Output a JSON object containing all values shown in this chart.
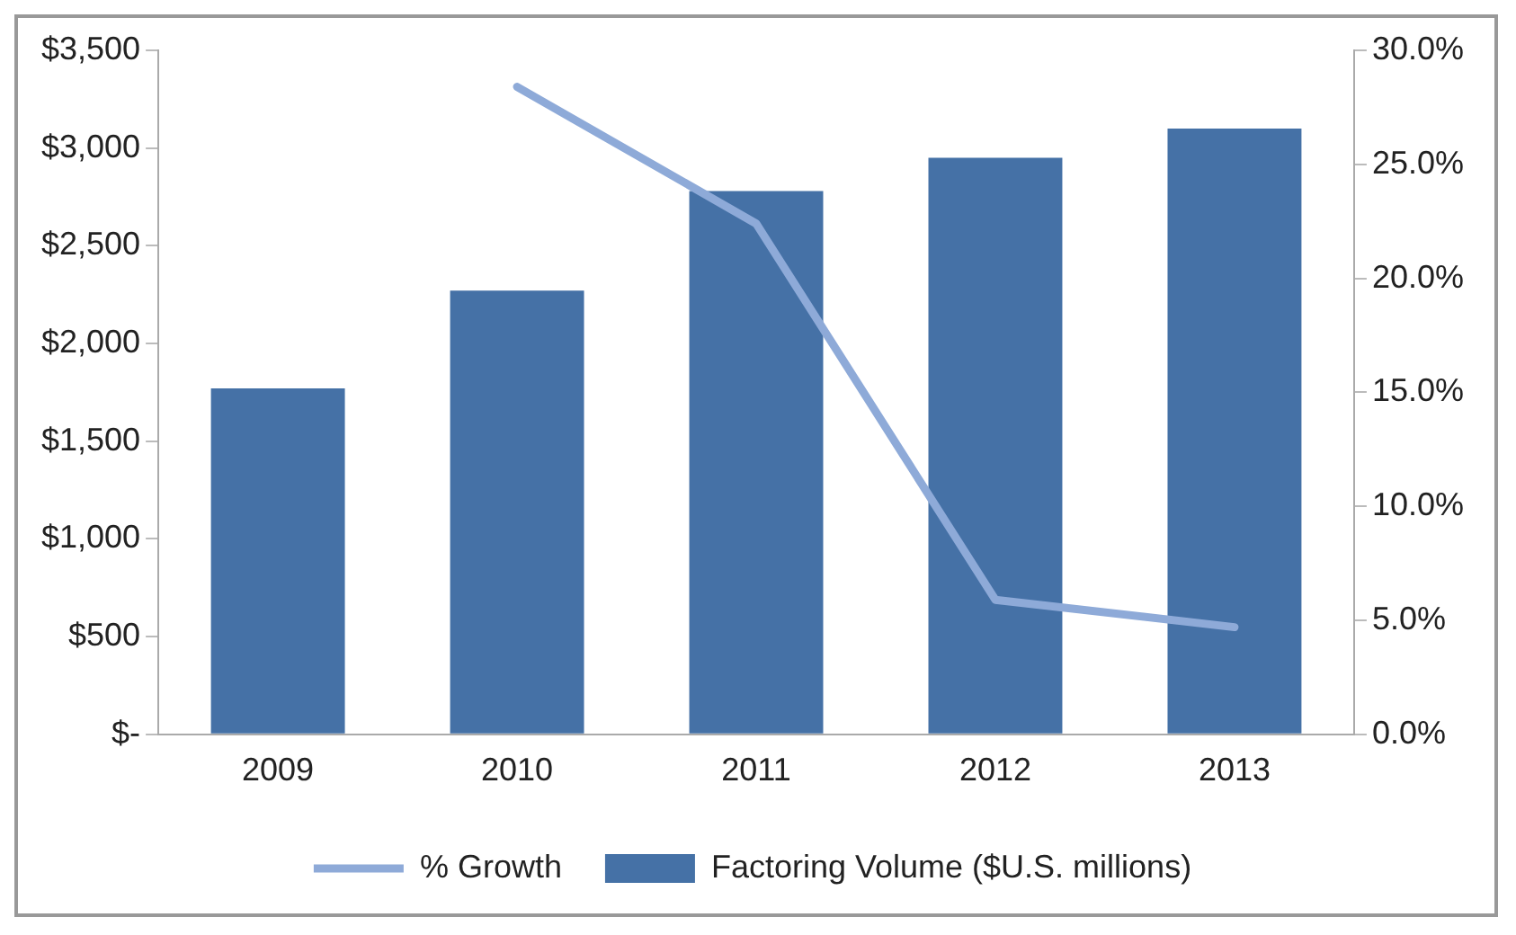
{
  "chart_data": {
    "type": "bar",
    "categories": [
      "2009",
      "2010",
      "2011",
      "2012",
      "2013"
    ],
    "series": [
      {
        "name": "Factoring Volume ($U.S. millions)",
        "color": "#4571a6",
        "values": [
          1770,
          2270,
          2780,
          2950,
          3100
        ]
      },
      {
        "name": "% Growth",
        "type": "line",
        "axis": "y2",
        "color": "#8eaad8",
        "marker": "none",
        "values": [
          null,
          28.4,
          22.4,
          5.9,
          4.7
        ]
      }
    ],
    "ylim": [
      0,
      3500
    ],
    "yticks": [
      {
        "value": 0,
        "label": "$-"
      },
      {
        "value": 500,
        "label": "$500"
      },
      {
        "value": 1000,
        "label": "$1,000"
      },
      {
        "value": 1500,
        "label": "$1,500"
      },
      {
        "value": 2000,
        "label": "$2,000"
      },
      {
        "value": 2500,
        "label": "$2,500"
      },
      {
        "value": 3000,
        "label": "$3,000"
      },
      {
        "value": 3500,
        "label": "$3,500"
      }
    ],
    "y2lim": [
      0,
      30
    ],
    "y2ticks": [
      {
        "value": 0,
        "label": "0.0%"
      },
      {
        "value": 5,
        "label": "5.0%"
      },
      {
        "value": 10,
        "label": "10.0%"
      },
      {
        "value": 15,
        "label": "15.0%"
      },
      {
        "value": 20,
        "label": "20.0%"
      },
      {
        "value": 25,
        "label": "25.0%"
      },
      {
        "value": 30,
        "label": "30.0%"
      }
    ],
    "grid": false,
    "legend": "bottom"
  }
}
